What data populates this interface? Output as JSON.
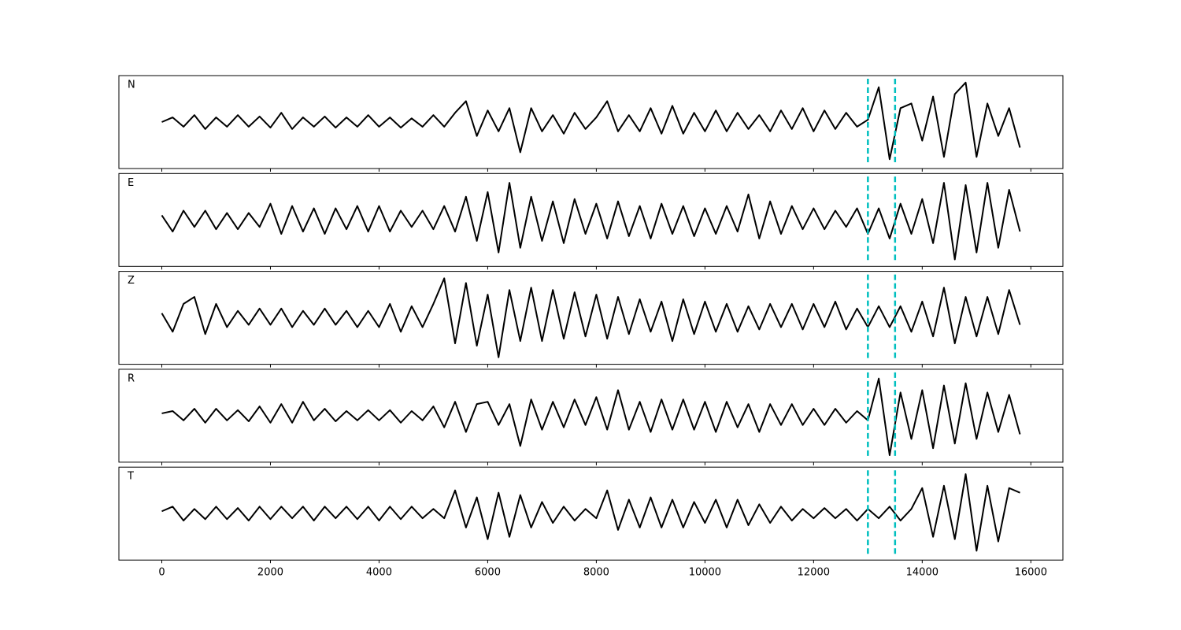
{
  "chart_data": [
    {
      "type": "line",
      "label": "N",
      "color": "#000000",
      "vlines": [
        13000,
        13500
      ],
      "vline_color": "#00bfbf",
      "xlim": [
        -790,
        16590
      ],
      "ylim": [
        -1,
        1
      ],
      "x": [
        0,
        200,
        400,
        600,
        800,
        1000,
        1200,
        1400,
        1600,
        1800,
        2000,
        2200,
        2400,
        2600,
        2800,
        3000,
        3200,
        3400,
        3600,
        3800,
        4000,
        4200,
        4400,
        4600,
        4800,
        5000,
        5200,
        5400,
        5600,
        5800,
        6000,
        6200,
        6400,
        6600,
        6800,
        7000,
        7200,
        7400,
        7600,
        7800,
        8000,
        8200,
        8400,
        8600,
        8800,
        9000,
        9200,
        9400,
        9600,
        9800,
        10000,
        10200,
        10400,
        10600,
        10800,
        11000,
        11200,
        11400,
        11600,
        11800,
        12000,
        12200,
        12400,
        12600,
        12800,
        13000,
        13200,
        13400,
        13600,
        13800,
        14000,
        14200,
        14400,
        14600,
        14800,
        15000,
        15200,
        15400,
        15600,
        15800
      ],
      "values": [
        0,
        0.1,
        -0.1,
        0.15,
        -0.15,
        0.1,
        -0.1,
        0.15,
        -0.1,
        0.12,
        -0.12,
        0.2,
        -0.15,
        0.1,
        -0.1,
        0.12,
        -0.12,
        0.1,
        -0.1,
        0.15,
        -0.1,
        0.1,
        -0.12,
        0.08,
        -0.1,
        0.15,
        -0.1,
        0.2,
        0.45,
        -0.3,
        0.25,
        -0.2,
        0.3,
        -0.65,
        0.3,
        -0.2,
        0.15,
        -0.25,
        0.2,
        -0.15,
        0.1,
        0.45,
        -0.2,
        0.15,
        -0.2,
        0.3,
        -0.25,
        0.35,
        -0.25,
        0.2,
        -0.2,
        0.25,
        -0.2,
        0.2,
        -0.15,
        0.15,
        -0.2,
        0.25,
        -0.15,
        0.3,
        -0.2,
        0.25,
        -0.15,
        0.2,
        -0.1,
        0.05,
        0.75,
        -0.8,
        0.3,
        0.4,
        -0.4,
        0.55,
        -0.75,
        0.6,
        0.85,
        -0.75,
        0.4,
        -0.3,
        0.3,
        -0.55
      ]
    },
    {
      "type": "line",
      "label": "E",
      "color": "#000000",
      "vlines": [
        13000,
        13500
      ],
      "vline_color": "#00bfbf",
      "xlim": [
        -790,
        16590
      ],
      "ylim": [
        -1,
        1
      ],
      "x": [
        0,
        200,
        400,
        600,
        800,
        1000,
        1200,
        1400,
        1600,
        1800,
        2000,
        2200,
        2400,
        2600,
        2800,
        3000,
        3200,
        3400,
        3600,
        3800,
        4000,
        4200,
        4400,
        4600,
        4800,
        5000,
        5200,
        5400,
        5600,
        5800,
        6000,
        6200,
        6400,
        6600,
        6800,
        7000,
        7200,
        7400,
        7600,
        7800,
        8000,
        8200,
        8400,
        8600,
        8800,
        9000,
        9200,
        9400,
        9600,
        9800,
        10000,
        10200,
        10400,
        10600,
        10800,
        11000,
        11200,
        11400,
        11600,
        11800,
        12000,
        12200,
        12400,
        12600,
        12800,
        13000,
        13200,
        13400,
        13600,
        13800,
        14000,
        14200,
        14400,
        14600,
        14800,
        15000,
        15200,
        15400,
        15600,
        15800
      ],
      "values": [
        0.1,
        -0.25,
        0.2,
        -0.15,
        0.2,
        -0.2,
        0.15,
        -0.2,
        0.15,
        -0.15,
        0.35,
        -0.3,
        0.3,
        -0.25,
        0.25,
        -0.3,
        0.25,
        -0.2,
        0.3,
        -0.25,
        0.3,
        -0.25,
        0.2,
        -0.15,
        0.2,
        -0.2,
        0.3,
        -0.25,
        0.5,
        -0.45,
        0.6,
        -0.7,
        0.8,
        -0.6,
        0.5,
        -0.45,
        0.4,
        -0.5,
        0.45,
        -0.3,
        0.35,
        -0.4,
        0.4,
        -0.35,
        0.3,
        -0.4,
        0.35,
        -0.3,
        0.3,
        -0.35,
        0.25,
        -0.3,
        0.3,
        -0.25,
        0.55,
        -0.4,
        0.4,
        -0.3,
        0.3,
        -0.2,
        0.25,
        -0.2,
        0.2,
        -0.15,
        0.25,
        -0.3,
        0.25,
        -0.4,
        0.35,
        -0.3,
        0.45,
        -0.5,
        0.8,
        -0.85,
        0.75,
        -0.7,
        0.8,
        -0.6,
        0.65,
        -0.25
      ]
    },
    {
      "type": "line",
      "label": "Z",
      "color": "#000000",
      "vlines": [
        13000,
        13500
      ],
      "vline_color": "#00bfbf",
      "xlim": [
        -790,
        16590
      ],
      "ylim": [
        -1,
        1
      ],
      "x": [
        0,
        200,
        400,
        600,
        800,
        1000,
        1200,
        1400,
        1600,
        1800,
        2000,
        2200,
        2400,
        2600,
        2800,
        3000,
        3200,
        3400,
        3600,
        3800,
        4000,
        4200,
        4400,
        4600,
        4800,
        5000,
        5200,
        5400,
        5600,
        5800,
        6000,
        6200,
        6400,
        6600,
        6800,
        7000,
        7200,
        7400,
        7600,
        7800,
        8000,
        8200,
        8400,
        8600,
        8800,
        9000,
        9200,
        9400,
        9600,
        9800,
        10000,
        10200,
        10400,
        10600,
        10800,
        11000,
        11200,
        11400,
        11600,
        11800,
        12000,
        12200,
        12400,
        12600,
        12800,
        13000,
        13200,
        13400,
        13600,
        13800,
        14000,
        14200,
        14400,
        14600,
        14800,
        15000,
        15200,
        15400,
        15600,
        15800
      ],
      "values": [
        0.1,
        -0.3,
        0.3,
        0.45,
        -0.35,
        0.3,
        -0.2,
        0.15,
        -0.15,
        0.2,
        -0.15,
        0.2,
        -0.2,
        0.15,
        -0.15,
        0.2,
        -0.15,
        0.15,
        -0.2,
        0.15,
        -0.2,
        0.3,
        -0.3,
        0.25,
        -0.2,
        0.3,
        0.85,
        -0.55,
        0.75,
        -0.6,
        0.5,
        -0.85,
        0.6,
        -0.5,
        0.65,
        -0.5,
        0.6,
        -0.45,
        0.55,
        -0.4,
        0.5,
        -0.45,
        0.45,
        -0.35,
        0.4,
        -0.3,
        0.35,
        -0.5,
        0.4,
        -0.35,
        0.35,
        -0.3,
        0.3,
        -0.3,
        0.25,
        -0.25,
        0.3,
        -0.2,
        0.3,
        -0.25,
        0.3,
        -0.2,
        0.35,
        -0.25,
        0.2,
        -0.2,
        0.25,
        -0.2,
        0.25,
        -0.3,
        0.35,
        -0.4,
        0.65,
        -0.55,
        0.45,
        -0.4,
        0.45,
        -0.35,
        0.6,
        -0.15
      ]
    },
    {
      "type": "line",
      "label": "R",
      "color": "#000000",
      "vlines": [
        13000,
        13500
      ],
      "vline_color": "#00bfbf",
      "xlim": [
        -790,
        16590
      ],
      "ylim": [
        -1,
        1
      ],
      "x": [
        0,
        200,
        400,
        600,
        800,
        1000,
        1200,
        1400,
        1600,
        1800,
        2000,
        2200,
        2400,
        2600,
        2800,
        3000,
        3200,
        3400,
        3600,
        3800,
        4000,
        4200,
        4400,
        4600,
        4800,
        5000,
        5200,
        5400,
        5600,
        5800,
        6000,
        6200,
        6400,
        6600,
        6800,
        7000,
        7200,
        7400,
        7600,
        7800,
        8000,
        8200,
        8400,
        8600,
        8800,
        9000,
        9200,
        9400,
        9600,
        9800,
        10000,
        10200,
        10400,
        10600,
        10800,
        11000,
        11200,
        11400,
        11600,
        11800,
        12000,
        12200,
        12400,
        12600,
        12800,
        13000,
        13200,
        13400,
        13600,
        13800,
        14000,
        14200,
        14400,
        14600,
        14800,
        15000,
        15200,
        15400,
        15600,
        15800
      ],
      "values": [
        0.05,
        0.1,
        -0.1,
        0.15,
        -0.15,
        0.15,
        -0.1,
        0.12,
        -0.12,
        0.2,
        -0.15,
        0.25,
        -0.15,
        0.3,
        -0.1,
        0.15,
        -0.12,
        0.1,
        -0.1,
        0.12,
        -0.1,
        0.12,
        -0.15,
        0.1,
        -0.1,
        0.2,
        -0.25,
        0.3,
        -0.35,
        0.25,
        0.3,
        -0.2,
        0.25,
        -0.65,
        0.35,
        -0.3,
        0.3,
        -0.25,
        0.35,
        -0.2,
        0.4,
        -0.3,
        0.55,
        -0.3,
        0.3,
        -0.35,
        0.35,
        -0.3,
        0.35,
        -0.3,
        0.3,
        -0.35,
        0.3,
        -0.25,
        0.25,
        -0.35,
        0.25,
        -0.2,
        0.25,
        -0.2,
        0.15,
        -0.2,
        0.15,
        -0.15,
        0.1,
        -0.1,
        0.8,
        -0.85,
        0.5,
        -0.5,
        0.55,
        -0.7,
        0.65,
        -0.6,
        0.7,
        -0.5,
        0.5,
        -0.35,
        0.45,
        -0.4
      ]
    },
    {
      "type": "line",
      "label": "T",
      "color": "#000000",
      "vlines": [
        13000,
        13500
      ],
      "vline_color": "#00bfbf",
      "xlim": [
        -790,
        16590
      ],
      "ylim": [
        -1,
        1
      ],
      "xticks": [
        0,
        2000,
        4000,
        6000,
        8000,
        10000,
        12000,
        14000,
        16000
      ],
      "x": [
        0,
        200,
        400,
        600,
        800,
        1000,
        1200,
        1400,
        1600,
        1800,
        2000,
        2200,
        2400,
        2600,
        2800,
        3000,
        3200,
        3400,
        3600,
        3800,
        4000,
        4200,
        4400,
        4600,
        4800,
        5000,
        5200,
        5400,
        5600,
        5800,
        6000,
        6200,
        6400,
        6600,
        6800,
        7000,
        7200,
        7400,
        7600,
        7800,
        8000,
        8200,
        8400,
        8600,
        8800,
        9000,
        9200,
        9400,
        9600,
        9800,
        10000,
        10200,
        10400,
        10600,
        10800,
        11000,
        11200,
        11400,
        11600,
        11800,
        12000,
        12200,
        12400,
        12600,
        12800,
        13000,
        13200,
        13400,
        13600,
        13800,
        14000,
        14200,
        14400,
        14600,
        14800,
        15000,
        15200,
        15400,
        15600,
        15800
      ],
      "values": [
        0.05,
        0.15,
        -0.15,
        0.1,
        -0.12,
        0.15,
        -0.12,
        0.12,
        -0.15,
        0.15,
        -0.12,
        0.15,
        -0.1,
        0.15,
        -0.15,
        0.15,
        -0.1,
        0.15,
        -0.12,
        0.15,
        -0.15,
        0.15,
        -0.12,
        0.15,
        -0.1,
        0.1,
        -0.1,
        0.5,
        -0.3,
        0.35,
        -0.55,
        0.45,
        -0.5,
        0.4,
        -0.3,
        0.25,
        -0.2,
        0.15,
        -0.15,
        0.1,
        -0.1,
        0.5,
        -0.35,
        0.3,
        -0.3,
        0.35,
        -0.3,
        0.3,
        -0.3,
        0.25,
        -0.2,
        0.3,
        -0.3,
        0.3,
        -0.25,
        0.2,
        -0.2,
        0.15,
        -0.15,
        0.1,
        -0.1,
        0.12,
        -0.1,
        0.1,
        -0.15,
        0.1,
        -0.1,
        0.15,
        -0.15,
        0.1,
        0.55,
        -0.5,
        0.6,
        -0.55,
        0.85,
        -0.8,
        0.6,
        -0.6,
        0.55,
        0.45
      ]
    }
  ]
}
